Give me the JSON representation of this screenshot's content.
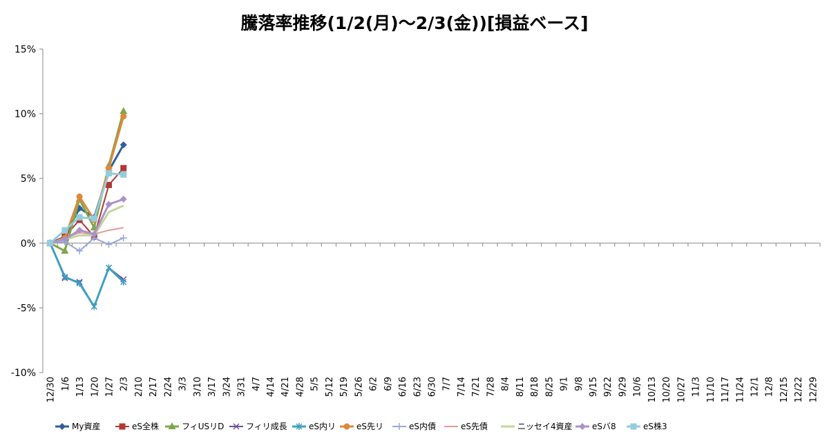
{
  "chart_data": {
    "type": "line",
    "title": "騰落率推移(1/2(月)～2/3(金))[損益ベース]",
    "ylim": [
      -10,
      15
    ],
    "yticks": [
      -10,
      -5,
      0,
      5,
      10,
      15
    ],
    "ytick_labels": [
      "-10%",
      "-5%",
      "0%",
      "5%",
      "10%",
      "15%"
    ],
    "grid": "horizontal-zero-only",
    "legend_position": "bottom",
    "x_labels": [
      "12/30",
      "1/6",
      "1/13",
      "1/20",
      "1/27",
      "2/3",
      "2/10",
      "2/17",
      "2/24",
      "3/3",
      "3/10",
      "3/17",
      "3/24",
      "3/31",
      "4/7",
      "4/14",
      "4/21",
      "4/28",
      "5/5",
      "5/12",
      "5/19",
      "5/26",
      "6/2",
      "6/9",
      "6/16",
      "6/23",
      "6/30",
      "7/7",
      "7/14",
      "7/21",
      "7/28",
      "8/4",
      "8/11",
      "8/18",
      "8/25",
      "9/1",
      "9/8",
      "9/15",
      "9/22",
      "9/29",
      "10/6",
      "10/13",
      "10/20",
      "10/27",
      "11/3",
      "11/10",
      "11/17",
      "11/24",
      "12/1",
      "12/8",
      "12/15",
      "12/22",
      "12/29"
    ],
    "series": [
      {
        "name": "My資産",
        "color": "#2E5E9E",
        "marker": "diamond",
        "width": 3,
        "values": [
          0,
          0.5,
          2.7,
          2.0,
          5.6,
          7.6
        ]
      },
      {
        "name": "eS全株",
        "color": "#B03A33",
        "marker": "square",
        "width": 2,
        "values": [
          0,
          0.5,
          1.8,
          0.5,
          4.5,
          5.8
        ]
      },
      {
        "name": "フィUSリD",
        "color": "#7FA64A",
        "marker": "triangle",
        "width": 3,
        "values": [
          0,
          -0.6,
          3.4,
          1.2,
          6.0,
          10.2
        ]
      },
      {
        "name": "フィリ成長",
        "color": "#6A4E96",
        "marker": "x",
        "width": 2,
        "values": [
          0,
          -2.7,
          -3.0,
          -4.9,
          -1.9,
          -2.8
        ]
      },
      {
        "name": "eS内リ",
        "color": "#3F9FBF",
        "marker": "star",
        "width": 3,
        "values": [
          0,
          -2.6,
          -3.1,
          -4.9,
          -1.9,
          -3.0
        ]
      },
      {
        "name": "eS先リ",
        "color": "#E0873A",
        "marker": "circle",
        "width": 3,
        "values": [
          0,
          0.4,
          3.6,
          1.8,
          5.8,
          9.8
        ]
      },
      {
        "name": "eS内債",
        "color": "#97A8D9",
        "marker": "plus",
        "width": 2,
        "values": [
          0,
          0.1,
          -0.6,
          0.4,
          -0.1,
          0.4
        ]
      },
      {
        "name": "eS先債",
        "color": "#E39A98",
        "marker": "none",
        "width": 2,
        "values": [
          0,
          0.4,
          0.8,
          0.7,
          1.0,
          1.2
        ]
      },
      {
        "name": "ニッセイ4資産",
        "color": "#C2D69B",
        "marker": "none",
        "width": 3,
        "values": [
          0,
          0.3,
          0.6,
          0.6,
          2.4,
          2.9
        ]
      },
      {
        "name": "eSバ8",
        "color": "#A992C9",
        "marker": "diamond",
        "width": 3,
        "values": [
          0,
          0.3,
          1.0,
          0.7,
          3.0,
          3.4
        ]
      },
      {
        "name": "eS株3",
        "color": "#93CDDD",
        "marker": "square",
        "width": 3,
        "values": [
          0,
          1.0,
          2.0,
          1.9,
          5.4,
          5.3
        ]
      }
    ]
  }
}
